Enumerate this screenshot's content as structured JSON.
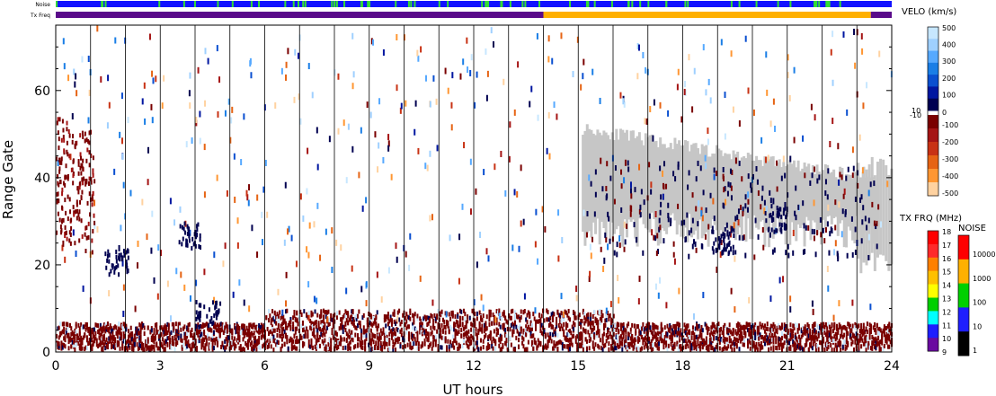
{
  "chart_data": {
    "type": "heatmap",
    "xlabel": "UT hours",
    "ylabel": "Range Gate",
    "xlim": [
      0,
      24
    ],
    "ylim": [
      0,
      75
    ],
    "x_ticks": [
      "0",
      "3",
      "6",
      "9",
      "12",
      "15",
      "18",
      "21",
      "24"
    ],
    "y_ticks": [
      "0",
      "20",
      "40",
      "60"
    ],
    "status_bars": {
      "noise_label": "Noise",
      "txfreq_label": "Tx Freq",
      "txfreq_segments": [
        {
          "start": 0,
          "end": 14,
          "color": "#5a0a8a"
        },
        {
          "start": 14,
          "end": 23.4,
          "color": "#ffb000"
        },
        {
          "start": 23.4,
          "end": 24,
          "color": "#5a0a8a"
        }
      ]
    },
    "velocity_scale": {
      "title": "VELO (km/s)",
      "positive_labels": [
        "500",
        "400",
        "300",
        "200",
        "100",
        "10",
        "0"
      ],
      "negative_labels": [
        "-10",
        "-100",
        "-200",
        "-300",
        "-400",
        "-500"
      ],
      "positive_colors": [
        "#c7e7ff",
        "#9fd0ff",
        "#56a9ff",
        "#1a7ee6",
        "#0a4fd0",
        "#0016a0",
        "#000050"
      ],
      "negative_colors": [
        "#7a0000",
        "#a51414",
        "#c83214",
        "#e66414",
        "#ff9632",
        "#ffd2a0"
      ]
    },
    "txfrq_scale": {
      "title": "TX FRQ (MHz)",
      "labels": [
        "18",
        "17",
        "16",
        "15",
        "14",
        "13",
        "12",
        "11",
        "10",
        "9"
      ],
      "colors": [
        "#ff0000",
        "#ff2a2a",
        "#ff8000",
        "#ffc000",
        "#ffff00",
        "#00d000",
        "#00ffff",
        "#1e1eff",
        "#6a0aa0"
      ]
    },
    "noise_scale": {
      "title": "NOISE",
      "labels": [
        "10000",
        "1000",
        "100",
        "10",
        "1"
      ],
      "colors": [
        "#ff0000",
        "#ffb000",
        "#00d000",
        "#1e1eff",
        "#000000"
      ]
    },
    "scatter_regions": [
      {
        "note": "ground scatter (grey)",
        "x": [
          15.1,
          23.6
        ],
        "y": [
          18,
          52
        ]
      },
      {
        "note": "near-range clutter",
        "x": [
          0,
          24
        ],
        "y": [
          0,
          8
        ]
      },
      {
        "note": "ionospheric returns (red)",
        "x": [
          0,
          1.1
        ],
        "y": [
          25,
          55
        ]
      }
    ]
  }
}
